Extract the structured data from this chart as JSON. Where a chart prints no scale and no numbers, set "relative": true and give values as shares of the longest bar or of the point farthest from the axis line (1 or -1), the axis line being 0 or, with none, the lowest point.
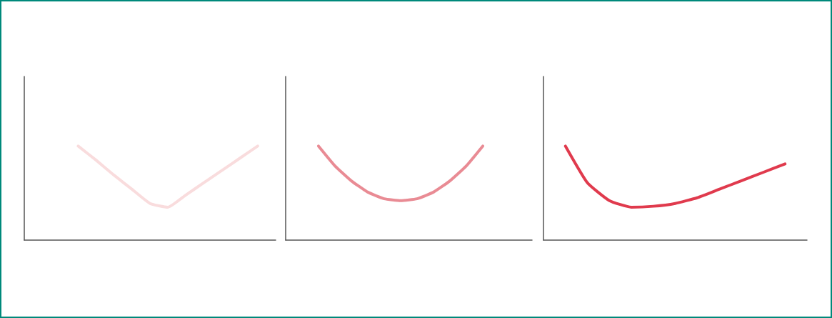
{
  "chart_data": [
    {
      "type": "line",
      "relative": true,
      "categories": [
        null,
        null,
        null,
        null,
        null,
        null,
        null,
        null,
        null,
        null,
        null,
        null,
        null,
        null,
        null
      ],
      "series": [
        {
          "color": "#f9dcdd",
          "values": [
            null,
            null,
            null,
            1,
            0.85,
            0.69,
            0.54,
            0.39,
            0.35,
            0.48,
            0.61,
            0.74,
            0.87,
            1,
            null
          ]
        }
      ],
      "grid": false,
      "marker": "none"
    },
    {
      "type": "line",
      "relative": true,
      "categories": [
        null,
        null,
        null,
        null,
        null,
        null,
        null,
        null,
        null,
        null,
        null,
        null,
        null,
        null,
        null,
        null
      ],
      "series": [
        {
          "color": "#e98b94",
          "values": [
            null,
            null,
            1,
            0.79,
            0.63,
            0.51,
            0.44,
            0.42,
            0.44,
            0.51,
            0.63,
            0.79,
            1,
            null,
            null,
            null
          ]
        }
      ],
      "grid": false,
      "marker": "none"
    },
    {
      "type": "line",
      "relative": true,
      "categories": [
        null,
        null,
        null,
        null,
        null,
        null,
        null,
        null,
        null,
        null,
        null,
        null,
        null
      ],
      "series": [
        {
          "color": "#e03a4d",
          "values": [
            null,
            1,
            0.61,
            0.42,
            0.35,
            0.36,
            0.39,
            0.45,
            0.54,
            0.63,
            0.72,
            0.81,
            null
          ]
        }
      ],
      "grid": false,
      "marker": "none"
    }
  ]
}
